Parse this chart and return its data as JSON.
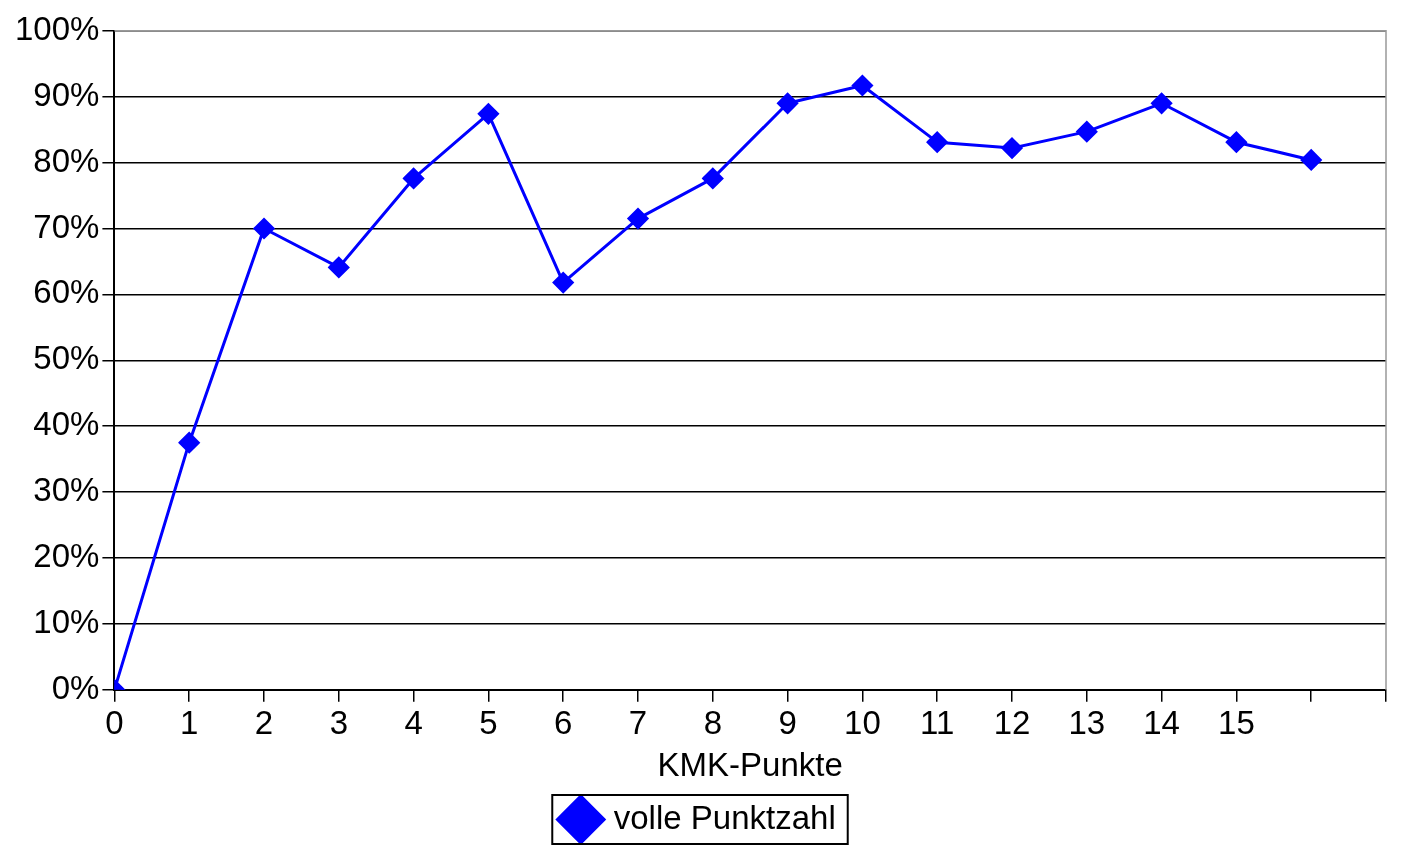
{
  "chart_data": {
    "type": "line",
    "xlabel": "KMK-Punkte",
    "x": [
      0,
      1,
      2,
      3,
      4,
      5,
      6,
      7,
      8,
      9,
      10,
      11,
      12,
      13,
      14,
      15,
      16
    ],
    "series": [
      {
        "name": "volle Punktzahl",
        "color": "#0000ff",
        "values": [
          0,
          37.5,
          70,
          64.1,
          77.6,
          87.4,
          61.8,
          71.5,
          77.6,
          89.0,
          91.7,
          83.1,
          82.2,
          84.7,
          89.0,
          83.1,
          80.4
        ]
      }
    ],
    "xlim": [
      0,
      17
    ],
    "xticks": [
      0,
      1,
      2,
      3,
      4,
      5,
      6,
      7,
      8,
      9,
      10,
      11,
      12,
      13,
      14,
      15,
      {
        "value": 16,
        "label": null
      },
      {
        "value": 17,
        "label": null
      }
    ],
    "ylim": [
      0,
      100
    ],
    "yticks": [
      {
        "value": 0,
        "label": "0%"
      },
      {
        "value": 10,
        "label": "10%"
      },
      {
        "value": 20,
        "label": "20%"
      },
      {
        "value": 30,
        "label": "30%"
      },
      {
        "value": 40,
        "label": "40%"
      },
      {
        "value": 50,
        "label": "50%"
      },
      {
        "value": 60,
        "label": "60%"
      },
      {
        "value": 70,
        "label": "70%"
      },
      {
        "value": 80,
        "label": "80%"
      },
      {
        "value": 90,
        "label": "90%"
      },
      {
        "value": 100,
        "label": "100%"
      }
    ],
    "grid": "y",
    "legend": "bottom",
    "marker": "diamond",
    "line_style": "solid"
  }
}
